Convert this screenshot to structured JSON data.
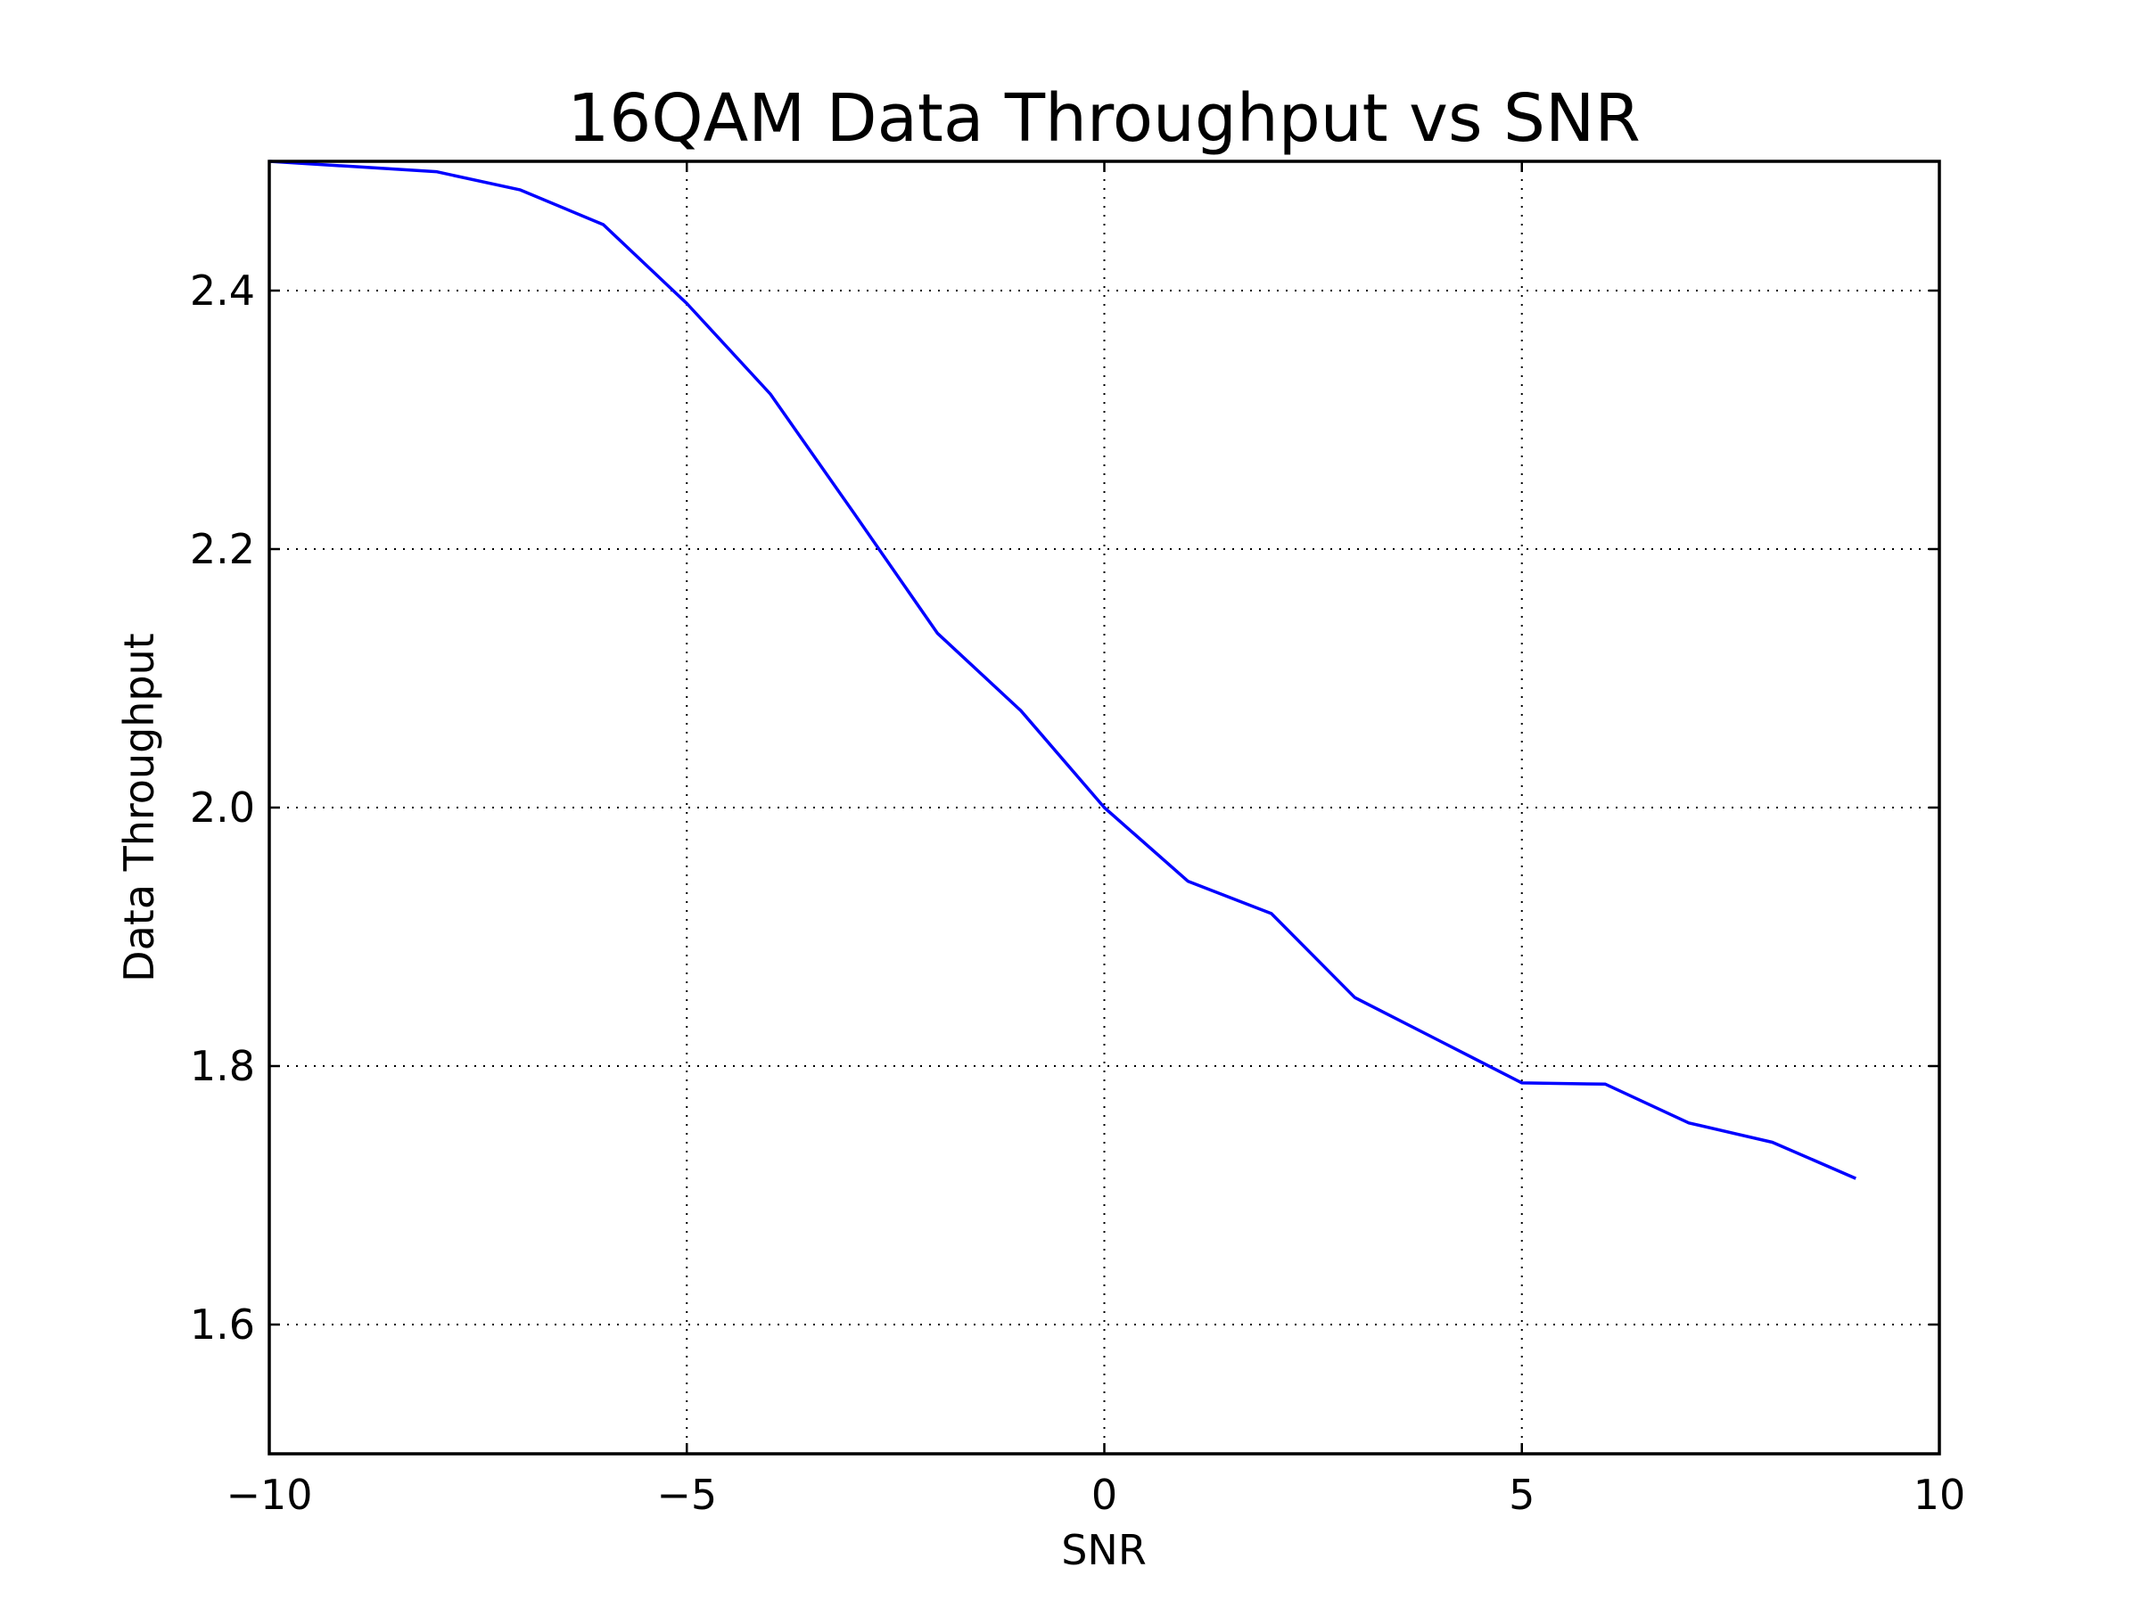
{
  "chart_data": {
    "type": "line",
    "title": "16QAM Data Throughput vs SNR",
    "xlabel": "SNR",
    "ylabel": "Data Throughput",
    "xlim": [
      -10,
      10
    ],
    "ylim": [
      1.5,
      2.5
    ],
    "xticks": [
      -10,
      -5,
      0,
      5,
      10
    ],
    "xtick_labels": [
      "−10",
      "−5",
      "0",
      "5",
      "10"
    ],
    "yticks": [
      1.6,
      1.8,
      2.0,
      2.2,
      2.4
    ],
    "ytick_labels": [
      "1.6",
      "1.8",
      "2.0",
      "2.2",
      "2.4"
    ],
    "grid": true,
    "grid_style": "dotted",
    "series": [
      {
        "color": "#0000ff",
        "x": [
          -10,
          -9,
          -8,
          -7,
          -6,
          -5,
          -4,
          -3,
          -2,
          -1,
          0,
          1,
          2,
          3,
          4,
          5,
          6,
          7,
          8,
          9
        ],
        "y": [
          2.5,
          2.496,
          2.492,
          2.478,
          2.451,
          2.39,
          2.32,
          2.228,
          2.135,
          2.075,
          2.0,
          1.943,
          1.918,
          1.853,
          1.82,
          1.787,
          1.786,
          1.756,
          1.741,
          1.713
        ]
      }
    ]
  }
}
